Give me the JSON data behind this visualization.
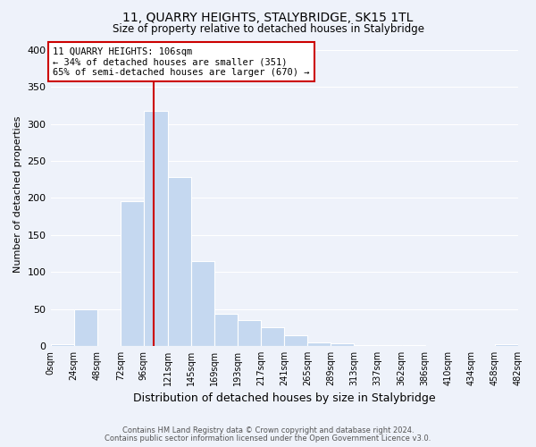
{
  "title": "11, QUARRY HEIGHTS, STALYBRIDGE, SK15 1TL",
  "subtitle": "Size of property relative to detached houses in Stalybridge",
  "xlabel": "Distribution of detached houses by size in Stalybridge",
  "ylabel": "Number of detached properties",
  "bar_color": "#c5d8f0",
  "background_color": "#eef2fa",
  "grid_color": "#ffffff",
  "vline_color": "#cc0000",
  "annotation_box_edge_color": "#cc0000",
  "bin_edges": [
    0,
    24,
    48,
    72,
    96,
    121,
    145,
    169,
    193,
    217,
    241,
    265,
    289,
    313,
    337,
    362,
    386,
    410,
    434,
    458,
    482
  ],
  "bin_labels": [
    "0sqm",
    "24sqm",
    "48sqm",
    "72sqm",
    "96sqm",
    "121sqm",
    "145sqm",
    "169sqm",
    "193sqm",
    "217sqm",
    "241sqm",
    "265sqm",
    "289sqm",
    "313sqm",
    "337sqm",
    "362sqm",
    "386sqm",
    "410sqm",
    "434sqm",
    "458sqm",
    "482sqm"
  ],
  "bar_heights": [
    2,
    50,
    0,
    195,
    318,
    228,
    115,
    43,
    35,
    25,
    15,
    5,
    3,
    1,
    1,
    1,
    0,
    0,
    0,
    2
  ],
  "vline_x": 106,
  "annotation_text_line1": "11 QUARRY HEIGHTS: 106sqm",
  "annotation_text_line2": "← 34% of detached houses are smaller (351)",
  "annotation_text_line3": "65% of semi-detached houses are larger (670) →",
  "ylim": [
    0,
    410
  ],
  "yticks": [
    0,
    50,
    100,
    150,
    200,
    250,
    300,
    350,
    400
  ],
  "footer_line1": "Contains HM Land Registry data © Crown copyright and database right 2024.",
  "footer_line2": "Contains public sector information licensed under the Open Government Licence v3.0."
}
